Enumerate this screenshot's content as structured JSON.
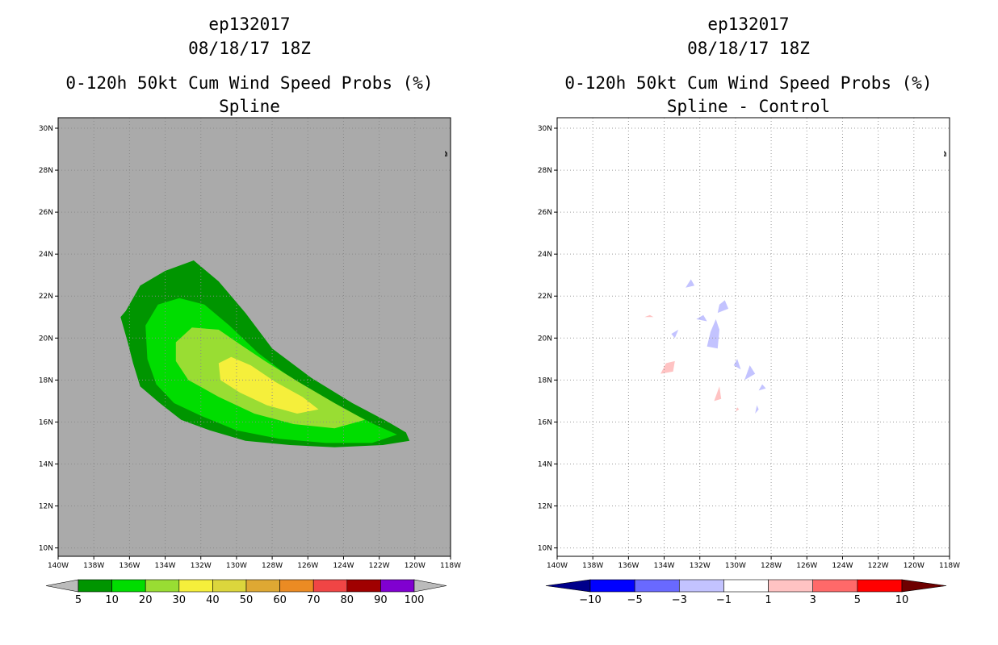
{
  "chart_data": [
    {
      "type": "contour-map",
      "storm_id": "ep132017",
      "datetime": "08/18/17 18Z",
      "title": "0-120h 50kt Cum Wind Speed Probs (%)",
      "subtitle": "Spline",
      "x_ticks": [
        "140W",
        "138W",
        "136W",
        "134W",
        "132W",
        "130W",
        "128W",
        "126W",
        "124W",
        "122W",
        "120W",
        "118W"
      ],
      "y_ticks": [
        "10N",
        "12N",
        "14N",
        "16N",
        "18N",
        "20N",
        "22N",
        "24N",
        "26N",
        "28N",
        "30N"
      ],
      "lon_range": [
        -140,
        -118
      ],
      "lat_range": [
        9.6,
        30.5
      ],
      "background_color": "#aaaaaa",
      "gridlines": true,
      "levels": [
        {
          "min": 5,
          "color": "#009500",
          "polygon": [
            [
              -136.2,
              21.3
            ],
            [
              -135.4,
              22.5
            ],
            [
              -134,
              23.2
            ],
            [
              -132.4,
              23.7
            ],
            [
              -131,
              22.7
            ],
            [
              -129.5,
              21.2
            ],
            [
              -128,
              19.5
            ],
            [
              -125.8,
              18.1
            ],
            [
              -123.5,
              16.9
            ],
            [
              -121.5,
              16
            ],
            [
              -120.5,
              15.5
            ],
            [
              -120.3,
              15.1
            ],
            [
              -121.8,
              14.9
            ],
            [
              -124.5,
              14.8
            ],
            [
              -127,
              14.9
            ],
            [
              -129.5,
              15.1
            ],
            [
              -131.5,
              15.6
            ],
            [
              -133.1,
              16.1
            ],
            [
              -134.3,
              16.9
            ],
            [
              -135.4,
              17.7
            ],
            [
              -135.8,
              18.8
            ],
            [
              -136.1,
              19.8
            ],
            [
              -136.5,
              21.0
            ]
          ]
        },
        {
          "min": 10,
          "color": "#00dd00",
          "polygon": [
            [
              -135.1,
              20.6
            ],
            [
              -134.4,
              21.6
            ],
            [
              -133.2,
              21.9
            ],
            [
              -131.8,
              21.6
            ],
            [
              -130.4,
              20.6
            ],
            [
              -128.8,
              19.3
            ],
            [
              -126.8,
              18.0
            ],
            [
              -124.6,
              16.9
            ],
            [
              -122.3,
              15.9
            ],
            [
              -121.0,
              15.4
            ],
            [
              -122.4,
              15.0
            ],
            [
              -125,
              15.0
            ],
            [
              -127.6,
              15.2
            ],
            [
              -130,
              15.6
            ],
            [
              -132,
              16.3
            ],
            [
              -133.5,
              16.9
            ],
            [
              -134.5,
              17.8
            ],
            [
              -135,
              19.0
            ]
          ]
        },
        {
          "min": 20,
          "color": "#99dd33",
          "polygon": [
            [
              -133.4,
              19.8
            ],
            [
              -132.5,
              20.5
            ],
            [
              -131,
              20.4
            ],
            [
              -129.8,
              19.7
            ],
            [
              -128.4,
              18.9
            ],
            [
              -126.5,
              17.9
            ],
            [
              -124.5,
              16.9
            ],
            [
              -122.8,
              16.1
            ],
            [
              -124.5,
              15.7
            ],
            [
              -126.8,
              15.9
            ],
            [
              -129,
              16.4
            ],
            [
              -131,
              17.2
            ],
            [
              -132.7,
              18.0
            ],
            [
              -133.4,
              18.9
            ]
          ]
        },
        {
          "min": 30,
          "color": "#f5ef3b",
          "polygon": [
            [
              -131,
              18.8
            ],
            [
              -130.3,
              19.1
            ],
            [
              -129.2,
              18.7
            ],
            [
              -127.8,
              17.9
            ],
            [
              -126.3,
              17.2
            ],
            [
              -125.4,
              16.6
            ],
            [
              -126.6,
              16.4
            ],
            [
              -128.3,
              16.8
            ],
            [
              -129.8,
              17.4
            ],
            [
              -130.9,
              18.0
            ]
          ]
        }
      ],
      "colorbar": {
        "labels": [
          "5",
          "10",
          "20",
          "30",
          "40",
          "50",
          "60",
          "70",
          "80",
          "90",
          "100"
        ],
        "colors": [
          "#009500",
          "#00dd00",
          "#99dd33",
          "#f5ef3b",
          "#dcd63c",
          "#dea833",
          "#eb8b23",
          "#f04545",
          "#a00000",
          "#8000d0"
        ],
        "below_color": "#bbbbbb",
        "above_color": "#bbbbbb"
      }
    },
    {
      "type": "contour-map",
      "storm_id": "ep132017",
      "datetime": "08/18/17 18Z",
      "title": "0-120h 50kt Cum Wind Speed Probs (%)",
      "subtitle": "Spline - Control",
      "x_ticks": [
        "140W",
        "138W",
        "136W",
        "134W",
        "132W",
        "130W",
        "128W",
        "126W",
        "124W",
        "122W",
        "120W",
        "118W"
      ],
      "y_ticks": [
        "10N",
        "12N",
        "14N",
        "16N",
        "18N",
        "20N",
        "22N",
        "24N",
        "26N",
        "28N",
        "30N"
      ],
      "lon_range": [
        -140,
        -118
      ],
      "lat_range": [
        9.6,
        30.5
      ],
      "background_color": "#ffffff",
      "gridlines": true,
      "patches": [
        {
          "sign": "neg",
          "color": "#c3c3ff",
          "polygon": [
            [
              -132.8,
              22.4
            ],
            [
              -132.5,
              22.8
            ],
            [
              -132.3,
              22.5
            ]
          ]
        },
        {
          "sign": "neg",
          "color": "#c3c3ff",
          "polygon": [
            [
              -131.0,
              21.2
            ],
            [
              -130.4,
              21.4
            ],
            [
              -130.6,
              21.8
            ],
            [
              -130.9,
              21.6
            ]
          ]
        },
        {
          "sign": "neg",
          "color": "#c3c3ff",
          "polygon": [
            [
              -132.2,
              20.9
            ],
            [
              -131.8,
              21.1
            ],
            [
              -131.6,
              20.8
            ]
          ]
        },
        {
          "sign": "neg",
          "color": "#c3c3ff",
          "polygon": [
            [
              -133.6,
              20.2
            ],
            [
              -133.2,
              20.4
            ],
            [
              -133.4,
              20.0
            ]
          ]
        },
        {
          "sign": "neg",
          "color": "#c3c3ff",
          "polygon": [
            [
              -131.6,
              19.6
            ],
            [
              -131.0,
              19.5
            ],
            [
              -130.9,
              20.4
            ],
            [
              -131.1,
              20.9
            ],
            [
              -131.4,
              20.3
            ]
          ]
        },
        {
          "sign": "neg",
          "color": "#c3c3ff",
          "polygon": [
            [
              -130.1,
              18.7
            ],
            [
              -129.7,
              18.5
            ],
            [
              -129.9,
              19.0
            ]
          ]
        },
        {
          "sign": "neg",
          "color": "#c3c3ff",
          "polygon": [
            [
              -129.5,
              18.0
            ],
            [
              -128.9,
              18.3
            ],
            [
              -129.2,
              18.7
            ]
          ]
        },
        {
          "sign": "neg",
          "color": "#c3c3ff",
          "polygon": [
            [
              -128.7,
              17.5
            ],
            [
              -128.3,
              17.6
            ],
            [
              -128.5,
              17.8
            ]
          ]
        },
        {
          "sign": "neg",
          "color": "#c3c3ff",
          "polygon": [
            [
              -128.9,
              16.4
            ],
            [
              -128.7,
              16.6
            ],
            [
              -128.8,
              16.8
            ]
          ]
        },
        {
          "sign": "pos",
          "color": "#ffc3c3",
          "polygon": [
            [
              -135.1,
              21.0
            ],
            [
              -134.8,
              21.1
            ],
            [
              -134.6,
              21.0
            ]
          ]
        },
        {
          "sign": "pos",
          "color": "#ffc3c3",
          "polygon": [
            [
              -134.2,
              18.3
            ],
            [
              -133.5,
              18.4
            ],
            [
              -133.4,
              18.9
            ],
            [
              -133.9,
              18.8
            ]
          ]
        },
        {
          "sign": "pos",
          "color": "#ffc3c3",
          "polygon": [
            [
              -131.2,
              17.0
            ],
            [
              -130.8,
              17.1
            ],
            [
              -130.9,
              17.7
            ]
          ]
        },
        {
          "sign": "pos",
          "color": "#ffc3c3",
          "polygon": [
            [
              -130.0,
              16.5
            ],
            [
              -129.8,
              16.6
            ],
            [
              -129.9,
              16.7
            ]
          ]
        }
      ],
      "colorbar": {
        "labels": [
          "-10",
          "-5",
          "-3",
          "-1",
          "1",
          "3",
          "5",
          "10"
        ],
        "colors": [
          "#0000ff",
          "#6969ff",
          "#c3c3ff",
          "#ffffff",
          "#ffc3c3",
          "#ff6969",
          "#ff0000"
        ],
        "below_color": "#00008b",
        "above_color": "#6e0000"
      }
    }
  ]
}
